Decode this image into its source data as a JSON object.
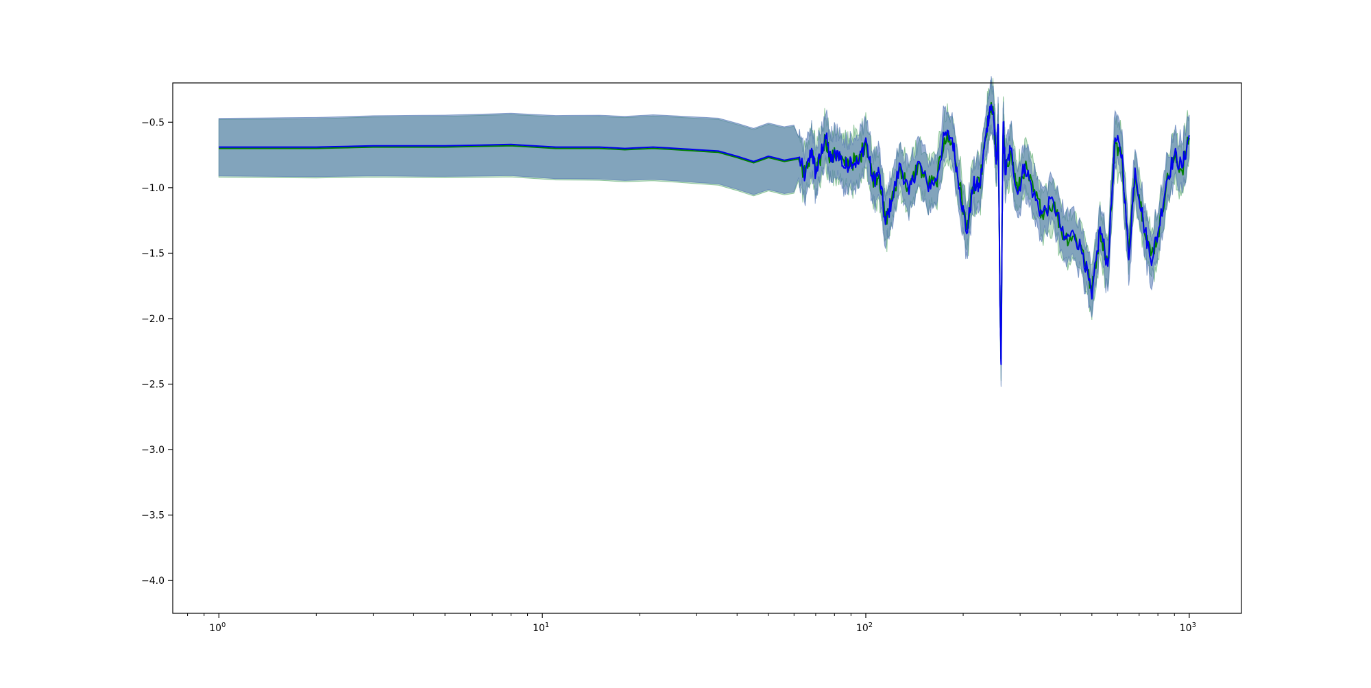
{
  "chart_data": {
    "type": "line",
    "title": "",
    "xlabel": "",
    "ylabel": "",
    "x_scale": "log",
    "xlim": [
      0.72,
      1450
    ],
    "ylim": [
      -4.25,
      -0.2
    ],
    "grid": false,
    "x_major_ticks": [
      {
        "value": 1,
        "base": "10",
        "exp": "0"
      },
      {
        "value": 10,
        "base": "10",
        "exp": "1"
      },
      {
        "value": 100,
        "base": "10",
        "exp": "2"
      },
      {
        "value": 1000,
        "base": "10",
        "exp": "3"
      }
    ],
    "x_minor_ticks": [
      0.8,
      0.9,
      2,
      3,
      4,
      5,
      6,
      7,
      8,
      9,
      20,
      30,
      40,
      50,
      60,
      70,
      80,
      90,
      200,
      300,
      400,
      500,
      600,
      700,
      800,
      900
    ],
    "y_ticks": [
      {
        "value": -0.5,
        "label": "−0.5"
      },
      {
        "value": -1.0,
        "label": "−1.0"
      },
      {
        "value": -1.5,
        "label": "−1.5"
      },
      {
        "value": -2.0,
        "label": "−2.0"
      },
      {
        "value": -2.5,
        "label": "−2.5"
      },
      {
        "value": -3.0,
        "label": "−3.0"
      },
      {
        "value": -3.5,
        "label": "−3.5"
      },
      {
        "value": -4.0,
        "label": "−4.0"
      }
    ],
    "colors": {
      "series_blue": "#0000ee",
      "series_green": "#008000",
      "band_blue": "#4c72b0",
      "band_green": "#55a868"
    },
    "series": [
      {
        "color": "#0000ee",
        "x": [
          1,
          2,
          3,
          5,
          8,
          11,
          15,
          18,
          22,
          26,
          30,
          35,
          40,
          45,
          50,
          56,
          62,
          65,
          68,
          70,
          72,
          75,
          78,
          82,
          86,
          90,
          95,
          100,
          105,
          110,
          115,
          120,
          128,
          136,
          145,
          155,
          165,
          175,
          185,
          195,
          205,
          215,
          225,
          235,
          242,
          248,
          253,
          257,
          260,
          262,
          264,
          266,
          270,
          280,
          295,
          310,
          330,
          350,
          380,
          410,
          440,
          470,
          500,
          530,
          560,
          590,
          620,
          650,
          680,
          720,
          760,
          800,
          850,
          900,
          950,
          1000
        ],
        "y": [
          -0.69,
          -0.69,
          -0.68,
          -0.68,
          -0.67,
          -0.69,
          -0.69,
          -0.7,
          -0.69,
          -0.7,
          -0.71,
          -0.72,
          -0.76,
          -0.8,
          -0.76,
          -0.79,
          -0.77,
          -0.92,
          -0.7,
          -0.9,
          -0.78,
          -0.6,
          -0.8,
          -0.72,
          -0.85,
          -0.78,
          -0.82,
          -0.62,
          -0.95,
          -0.88,
          -1.28,
          -1.1,
          -0.82,
          -1.05,
          -0.8,
          -0.98,
          -0.95,
          -0.6,
          -0.62,
          -1.0,
          -1.35,
          -0.98,
          -1.0,
          -0.6,
          -0.38,
          -0.42,
          -0.82,
          -0.55,
          -1.9,
          -2.35,
          -1.2,
          -0.5,
          -0.9,
          -0.7,
          -1.05,
          -0.82,
          -1.05,
          -1.2,
          -1.1,
          -1.4,
          -1.35,
          -1.5,
          -1.85,
          -1.3,
          -1.6,
          -0.62,
          -0.75,
          -1.55,
          -0.85,
          -1.25,
          -1.55,
          -1.35,
          -0.95,
          -0.75,
          -0.85,
          -0.6
        ]
      },
      {
        "color": "#008000",
        "x": [
          1,
          2,
          3,
          5,
          8,
          11,
          15,
          18,
          22,
          26,
          30,
          35,
          40,
          45,
          50,
          56,
          62,
          65,
          68,
          70,
          72,
          75,
          78,
          82,
          86,
          90,
          95,
          100,
          105,
          110,
          115,
          120,
          128,
          136,
          145,
          155,
          165,
          175,
          185,
          195,
          205,
          215,
          225,
          235,
          242,
          248,
          253,
          257,
          260,
          262,
          264,
          266,
          270,
          280,
          295,
          310,
          330,
          350,
          380,
          410,
          440,
          470,
          500,
          530,
          560,
          590,
          620,
          650,
          680,
          720,
          760,
          800,
          850,
          900,
          950,
          1000
        ],
        "y": [
          -0.7,
          -0.7,
          -0.69,
          -0.69,
          -0.68,
          -0.7,
          -0.7,
          -0.71,
          -0.7,
          -0.71,
          -0.72,
          -0.73,
          -0.77,
          -0.81,
          -0.77,
          -0.8,
          -0.78,
          -0.9,
          -0.72,
          -0.88,
          -0.8,
          -0.62,
          -0.78,
          -0.74,
          -0.83,
          -0.8,
          -0.8,
          -0.64,
          -0.93,
          -0.9,
          -1.25,
          -1.12,
          -0.84,
          -1.03,
          -0.82,
          -0.96,
          -0.97,
          -0.62,
          -0.64,
          -0.98,
          -1.32,
          -1.0,
          -0.98,
          -0.62,
          -0.4,
          -0.44,
          -0.8,
          -0.57,
          -1.85,
          -2.3,
          -1.22,
          -0.52,
          -0.88,
          -0.72,
          -1.03,
          -0.84,
          -1.03,
          -1.18,
          -1.12,
          -1.38,
          -1.37,
          -1.48,
          -1.8,
          -1.32,
          -1.58,
          -0.64,
          -0.77,
          -1.52,
          -0.87,
          -1.23,
          -1.52,
          -1.37,
          -0.97,
          -0.77,
          -0.87,
          -0.62
        ]
      }
    ]
  }
}
